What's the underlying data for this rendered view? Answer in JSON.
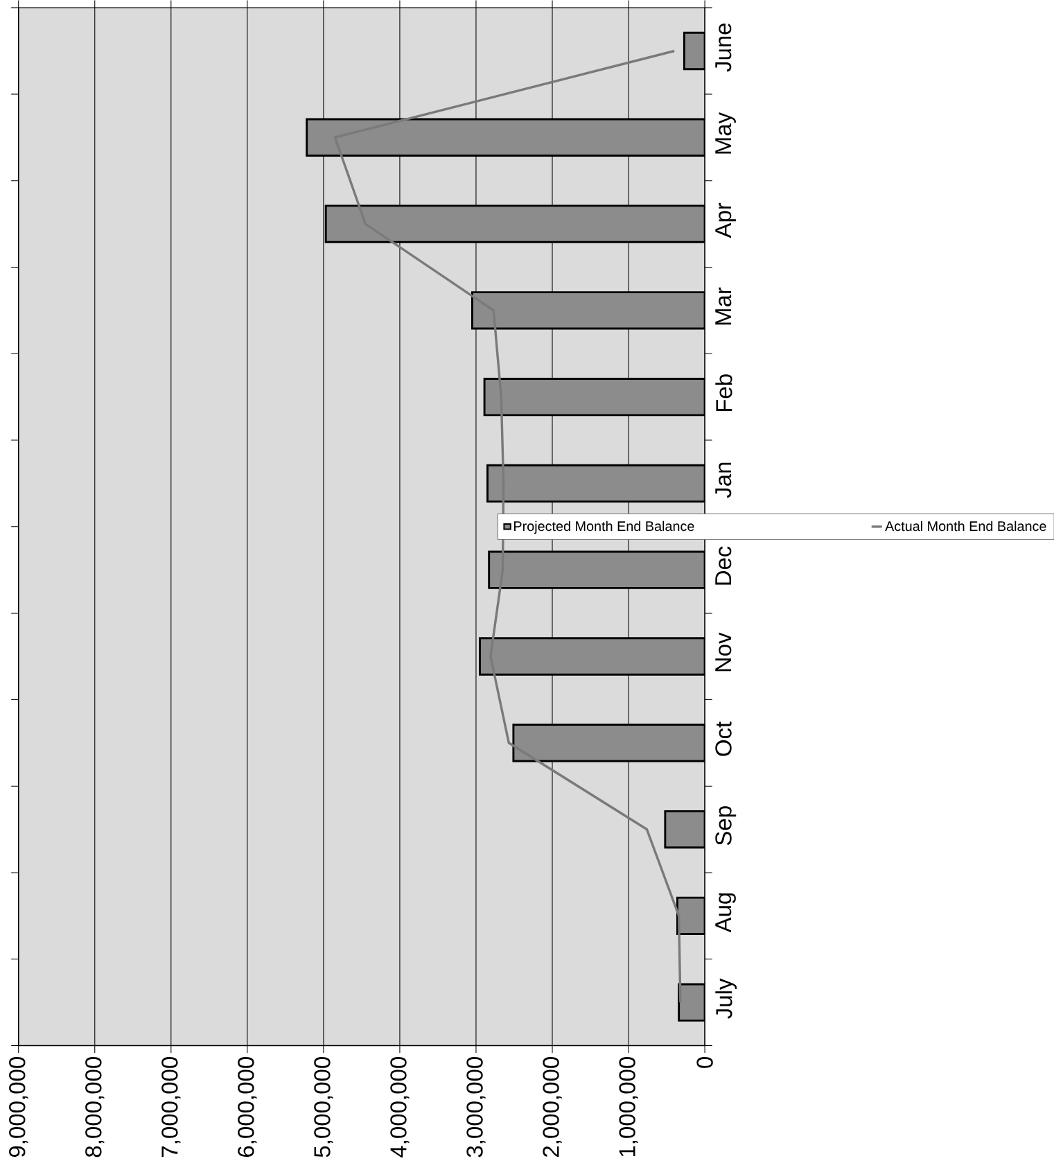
{
  "chart_data": {
    "type": "bar",
    "orientation": "horizontal",
    "categories": [
      "June",
      "May",
      "Apr",
      "Mar",
      "Feb",
      "Jan",
      "Dec",
      "Nov",
      "Oct",
      "Sep",
      "Aug",
      "July"
    ],
    "series": [
      {
        "name": "Projected Month End Balance",
        "color": "#8c8c8c",
        "values": [
          270000,
          5220000,
          4970000,
          3050000,
          2890000,
          2850000,
          2830000,
          2950000,
          2510000,
          520000,
          360000,
          340000
        ]
      },
      {
        "name": "Actual Month End Balance",
        "type": "line",
        "color": "#7a7a7a",
        "marker": "none",
        "values": [
          400000,
          4850000,
          4450000,
          2770000,
          2670000,
          2640000,
          2650000,
          2810000,
          2570000,
          760000,
          340000,
          320000
        ]
      }
    ],
    "xlim": [
      9000000,
      0
    ],
    "xticks": [
      {
        "value": 0,
        "label": "0"
      },
      {
        "value": 1000000,
        "label": "1,000,000"
      },
      {
        "value": 2000000,
        "label": "2,000,000"
      },
      {
        "value": 3000000,
        "label": "3,000,000"
      },
      {
        "value": 4000000,
        "label": "4,000,000"
      },
      {
        "value": 5000000,
        "label": "5,000,000"
      },
      {
        "value": 6000000,
        "label": "6,000,000"
      },
      {
        "value": 7000000,
        "label": "7,000,000"
      },
      {
        "value": 8000000,
        "label": "8,000,000"
      },
      {
        "value": 9000000,
        "label": "9,000,000"
      }
    ],
    "grid": "x",
    "legend": "right"
  }
}
